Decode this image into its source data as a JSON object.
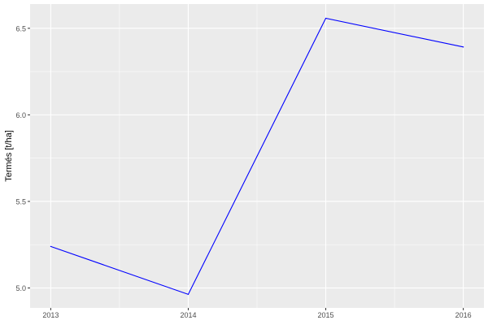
{
  "chart_data": {
    "type": "line",
    "title": "",
    "xlabel": "",
    "ylabel": "Termés [t/ha]",
    "x": [
      2013,
      2014,
      2015,
      2016
    ],
    "series": [
      {
        "values": [
          5.24,
          4.963,
          6.558,
          6.392
        ],
        "color": "#0000ff"
      }
    ],
    "xticks": [
      2013,
      2014,
      2015,
      2016
    ],
    "xtick_labels": [
      "2013",
      "2014",
      "2015",
      "2016"
    ],
    "yticks": [
      5.0,
      5.5,
      6.0,
      6.5
    ],
    "ytick_labels": [
      "5.0",
      "5.5",
      "6.0",
      "6.5"
    ],
    "xlim": [
      2012.85,
      2016.15
    ],
    "ylim": [
      4.885,
      6.64
    ],
    "grid": true,
    "panel_background": "#ebebeb"
  }
}
